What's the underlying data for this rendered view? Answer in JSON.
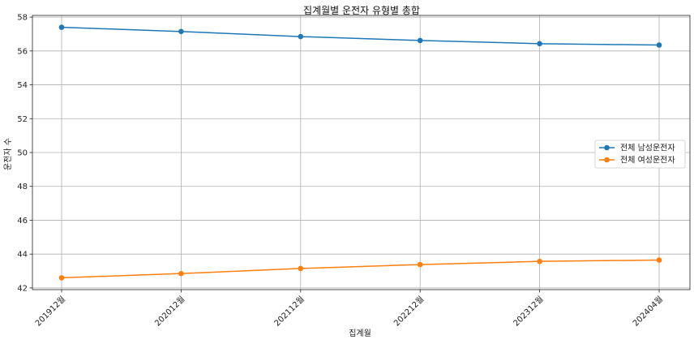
{
  "chart_data": {
    "type": "line",
    "title": "집계월별 운전자 유형별 총합",
    "xlabel": "집계월",
    "ylabel": "운전자 수",
    "categories": [
      "201912월",
      "202012월",
      "202112월",
      "202212월",
      "202312월",
      "202404월"
    ],
    "x_ticks": [
      "201912월",
      "202012월",
      "202112월",
      "202212월",
      "202312월",
      "202404월"
    ],
    "y_ticks": [
      "42",
      "44",
      "46",
      "48",
      "50",
      "52",
      "54",
      "56",
      "58"
    ],
    "ylim": [
      41.9,
      58.1
    ],
    "grid": true,
    "legend_position": "center-right",
    "series": [
      {
        "name": "전체 남성운전자",
        "color": "#1f77b4",
        "values": [
          57.4,
          57.15,
          56.85,
          56.62,
          56.43,
          56.35
        ]
      },
      {
        "name": "전체 여성운전자",
        "color": "#ff7f0e",
        "values": [
          42.6,
          42.85,
          43.15,
          43.38,
          43.57,
          43.65
        ]
      }
    ]
  }
}
